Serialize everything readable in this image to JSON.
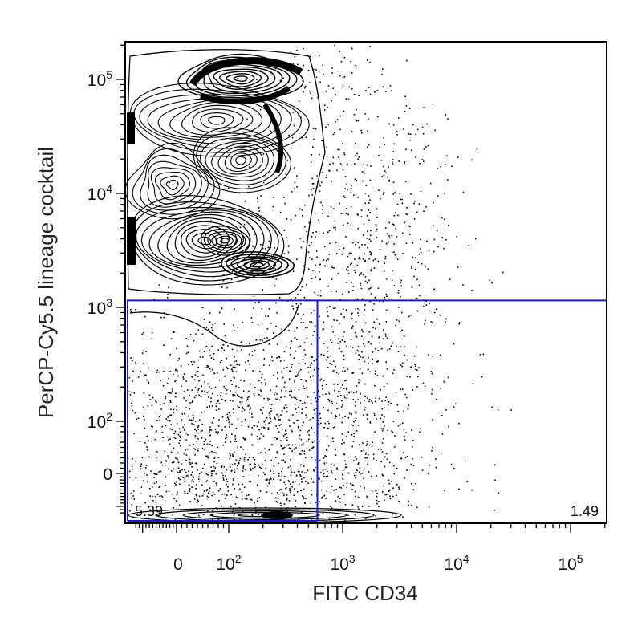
{
  "chart_data": {
    "type": "scatter",
    "plot_style": "flow cytometry contour plot with outliers",
    "xlabel": "FITC CD34",
    "ylabel": "PerCP-Cy5.5 lineage cocktail",
    "x_scale": "biexponential",
    "y_scale": "biexponential",
    "x_ticks": [
      {
        "value": 0,
        "base": "0",
        "exp": ""
      },
      {
        "value": 100,
        "base": "10",
        "exp": "2"
      },
      {
        "value": 1000,
        "base": "10",
        "exp": "3"
      },
      {
        "value": 10000,
        "base": "10",
        "exp": "4"
      },
      {
        "value": 100000,
        "base": "10",
        "exp": "5"
      }
    ],
    "y_ticks": [
      {
        "value": 0,
        "base": "0",
        "exp": ""
      },
      {
        "value": 100,
        "base": "10",
        "exp": "2"
      },
      {
        "value": 1000,
        "base": "10",
        "exp": "3"
      },
      {
        "value": 10000,
        "base": "10",
        "exp": "4"
      },
      {
        "value": 100000,
        "base": "10",
        "exp": "5"
      }
    ],
    "gates": {
      "x_threshold": 600,
      "y_threshold": 1150,
      "lower_left_label": "5.39",
      "lower_right_label": "1.49"
    },
    "populations": [
      {
        "name": "",
        "x": 120,
        "y": 60000
      },
      {
        "name": "",
        "x": 180,
        "y": 35000
      },
      {
        "name": "",
        "x": 150,
        "y": 3800
      },
      {
        "name": "",
        "x": 300,
        "y": 2200
      },
      {
        "name": "",
        "x": 300,
        "y": -120
      }
    ],
    "colors": {
      "gate_line": "#1a1acc",
      "contour": "#000000",
      "dots": "#000000",
      "axis": "#000000"
    },
    "grid": false,
    "legend": "none"
  }
}
